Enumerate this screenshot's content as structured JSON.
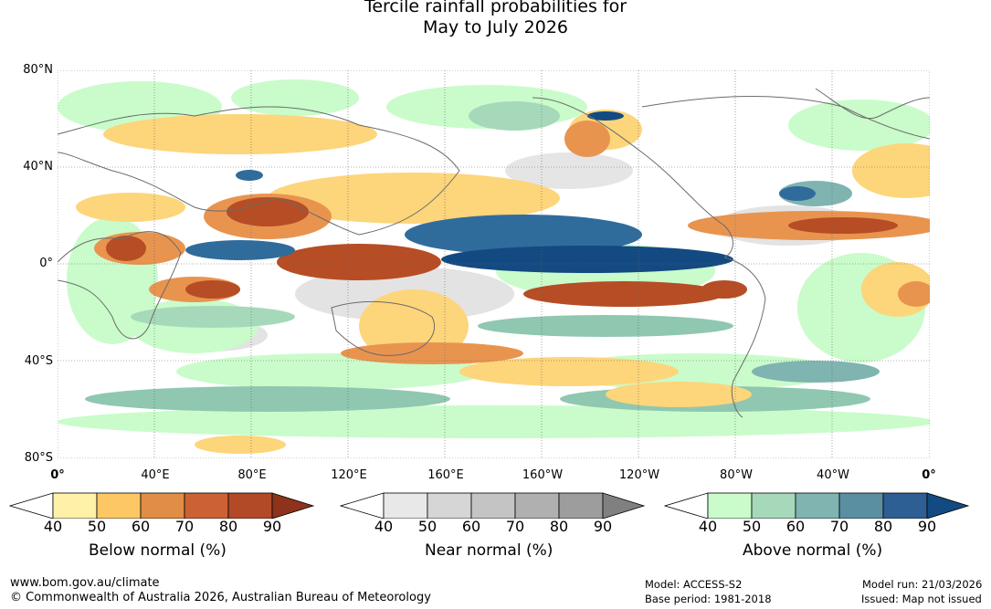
{
  "title": {
    "line1": "Tercile rainfall probabilities for",
    "line2": "May to July 2026"
  },
  "lat_labels": [
    "80°N",
    "40°N",
    "0°",
    "40°S",
    "80°S"
  ],
  "lon_labels": [
    "0°",
    "40°E",
    "80°E",
    "120°E",
    "160°E",
    "160°W",
    "120°W",
    "80°W",
    "40°W",
    "0°"
  ],
  "colorbars": [
    {
      "label": "Below normal (%)",
      "ticks": [
        "40",
        "50",
        "60",
        "70",
        "80",
        "90"
      ],
      "colors": [
        "#fff2a8",
        "#fdc863",
        "#e18d45",
        "#cc6234",
        "#b24a28",
        "#8e321b"
      ]
    },
    {
      "label": "Near normal (%)",
      "ticks": [
        "40",
        "50",
        "60",
        "70",
        "80",
        "90"
      ],
      "colors": [
        "#e8e8e8",
        "#d6d6d6",
        "#c4c4c4",
        "#b0b0b0",
        "#9d9d9d",
        "#808080"
      ]
    },
    {
      "label": "Above normal (%)",
      "ticks": [
        "40",
        "50",
        "60",
        "70",
        "80",
        "90"
      ],
      "colors": [
        "#c9fcca",
        "#a6d9b9",
        "#7fb4b0",
        "#5a8fa2",
        "#2e5f94",
        "#144a82"
      ]
    }
  ],
  "footer": {
    "website": "www.bom.gov.au/climate",
    "copyright": "© Commonwealth of Australia 2026, Australian Bureau of Meteorology",
    "model": "Model: ACCESS-S2",
    "base_period": "Base period: 1981-2018",
    "model_run": "Model run: 21/03/2026",
    "issued": "Issued: Map not issued"
  },
  "map_colors": {
    "below_light": "#fdd57a",
    "below_mid": "#e8944f",
    "below_strong": "#b64d25",
    "near": "#dcdcdc",
    "above_light": "#c9fcca",
    "above_mid": "#8fc7b0",
    "above_strong": "#2f6c9c",
    "above_max": "#134a82",
    "coast": "#6b6b6b"
  }
}
